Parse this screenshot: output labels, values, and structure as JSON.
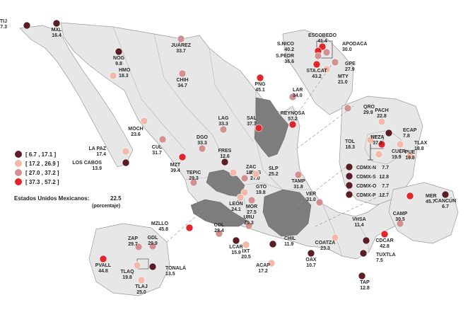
{
  "palette": [
    "#5b1e24",
    "#f2b8a8",
    "#d39091",
    "#e0262b"
  ],
  "legend": {
    "ranges": [
      {
        "text": "[   6.7 , 17.1 ]",
        "class": 0
      },
      {
        "text": "[ 17.2 , 26.9 ]",
        "class": 1
      },
      {
        "text": "[ 27.0 , 37.2 ]",
        "class": 2
      },
      {
        "text": "[ 37.3 , 57.2 ]",
        "class": 3
      }
    ]
  },
  "national": {
    "label": "Estados Unidos Mexicanos:",
    "value": "22.5",
    "unit": "(porcentaje)"
  },
  "cities": [
    {
      "code": "TIJ",
      "value": "7.3",
      "class": 0
    },
    {
      "code": "MXL",
      "value": "16.4",
      "class": 0
    },
    {
      "code": "NOG",
      "value": "9.8",
      "class": 0
    },
    {
      "code": "JUÁREZ",
      "value": "33.7",
      "class": 2
    },
    {
      "code": "HMO",
      "value": "18.3",
      "class": 1
    },
    {
      "code": "CHIH",
      "value": "34.7",
      "class": 2
    },
    {
      "code": "PNG",
      "value": "45.1",
      "class": 3
    },
    {
      "code": "LAR",
      "value": "34.0",
      "class": 2
    },
    {
      "code": "ESCOBEDO",
      "value": "41.4",
      "class": 3
    },
    {
      "code": "S.NICO",
      "value": "40.2",
      "class": 3
    },
    {
      "code": "APODACA",
      "value": "30.0",
      "class": 2
    },
    {
      "code": "S.PEDR",
      "value": "36.6",
      "class": 2
    },
    {
      "code": "GPE",
      "value": "27.9",
      "class": 2
    },
    {
      "code": "MTY",
      "value": "21.0",
      "class": 1
    },
    {
      "code": "STA.CAT",
      "value": "43.2",
      "class": 3
    },
    {
      "code": "REYNOSA",
      "value": "57.2",
      "class": 3
    },
    {
      "code": "SAL",
      "value": "37.7",
      "class": 3
    },
    {
      "code": "LAG",
      "value": "33.3",
      "class": 2
    },
    {
      "code": "DGO",
      "value": "33.3",
      "class": 2
    },
    {
      "code": "MOCH",
      "value": "23.6",
      "class": 1
    },
    {
      "code": "CUL",
      "value": "31.7",
      "class": 2
    },
    {
      "code": "LA PAZ",
      "value": "17.4",
      "class": 1
    },
    {
      "code": "LOS CABOS",
      "value": "13.9",
      "class": 0
    },
    {
      "code": "MZT",
      "value": "39.4",
      "class": 3
    },
    {
      "code": "FRES",
      "value": "12.6",
      "class": 0
    },
    {
      "code": "ZAC",
      "value": "18.0",
      "class": 1
    },
    {
      "code": "TEPIC",
      "value": "29.3",
      "class": 2
    },
    {
      "code": "AGS",
      "value": "27.0",
      "class": 2
    },
    {
      "code": "SLP",
      "value": "25.2",
      "class": 1
    },
    {
      "code": "GTO",
      "value": "19.8",
      "class": 1
    },
    {
      "code": "TAMP",
      "value": "31.8",
      "class": 2
    },
    {
      "code": "LEÓN",
      "value": "24.1",
      "class": 1
    },
    {
      "code": "MOR",
      "value": "27.5",
      "class": 2
    },
    {
      "code": "QRO",
      "value": "29.9",
      "class": 2
    },
    {
      "code": "VER",
      "value": "31.0",
      "class": 2
    },
    {
      "code": "MZLLO",
      "value": "45.8",
      "class": 3
    },
    {
      "code": "COL",
      "value": "28.4",
      "class": 2
    },
    {
      "code": "URU",
      "value": "29.3",
      "class": 2
    },
    {
      "code": "LCAR",
      "value": "15.9",
      "class": 0
    },
    {
      "code": "IXT",
      "value": "20.5",
      "class": 1
    },
    {
      "code": "CHIL",
      "value": "11.9",
      "class": 0
    },
    {
      "code": "ACAP",
      "value": "17.2",
      "class": 1
    },
    {
      "code": "OAX",
      "value": "10.7",
      "class": 0
    },
    {
      "code": "COATZA",
      "value": "23.3",
      "class": 1
    },
    {
      "code": "VHSA",
      "value": "11.4",
      "class": 0
    },
    {
      "code": "CDCAR",
      "value": "42.8",
      "class": 3
    },
    {
      "code": "TUXTLA",
      "value": "7.5",
      "class": 0
    },
    {
      "code": "TAP",
      "value": "12.8",
      "class": 0
    },
    {
      "code": "CAMP",
      "value": "30.5",
      "class": 2
    },
    {
      "code": "MER",
      "value": "45.7",
      "class": 3
    },
    {
      "code": "CANCÚN",
      "value": "6.7",
      "class": 0
    },
    {
      "code": "ZAP",
      "value": "29.7",
      "class": 2
    },
    {
      "code": "GDL",
      "value": "29.9",
      "class": 2
    },
    {
      "code": "TLAQ",
      "value": "19.8",
      "class": 1
    },
    {
      "code": "TONALÁ",
      "value": "13.5",
      "class": 0
    },
    {
      "code": "TLAJ",
      "value": "25.0",
      "class": 1
    },
    {
      "code": "PVALL",
      "value": "44.8",
      "class": 3
    },
    {
      "code": "PACH",
      "value": "22.8",
      "class": 1
    },
    {
      "code": "ECAP",
      "value": "7.8",
      "class": 0
    },
    {
      "code": "TOL",
      "value": "18.3",
      "class": 1
    },
    {
      "code": "NEZA",
      "value": "37.3",
      "class": 3
    },
    {
      "code": "TLAX",
      "value": "18.8",
      "class": 1
    },
    {
      "code": "CUER",
      "value": "19.9",
      "class": 1
    },
    {
      "code": "PUE",
      "value": "19.8",
      "class": 1
    },
    {
      "code": "CDMX-N",
      "value": "7.7",
      "class": 0
    },
    {
      "code": "CDMX-S",
      "value": "12.8",
      "class": 0
    },
    {
      "code": "CDMX-O",
      "value": "7.7",
      "class": 0
    },
    {
      "code": "CDMX-P",
      "value": "12.7",
      "class": 0
    }
  ]
}
